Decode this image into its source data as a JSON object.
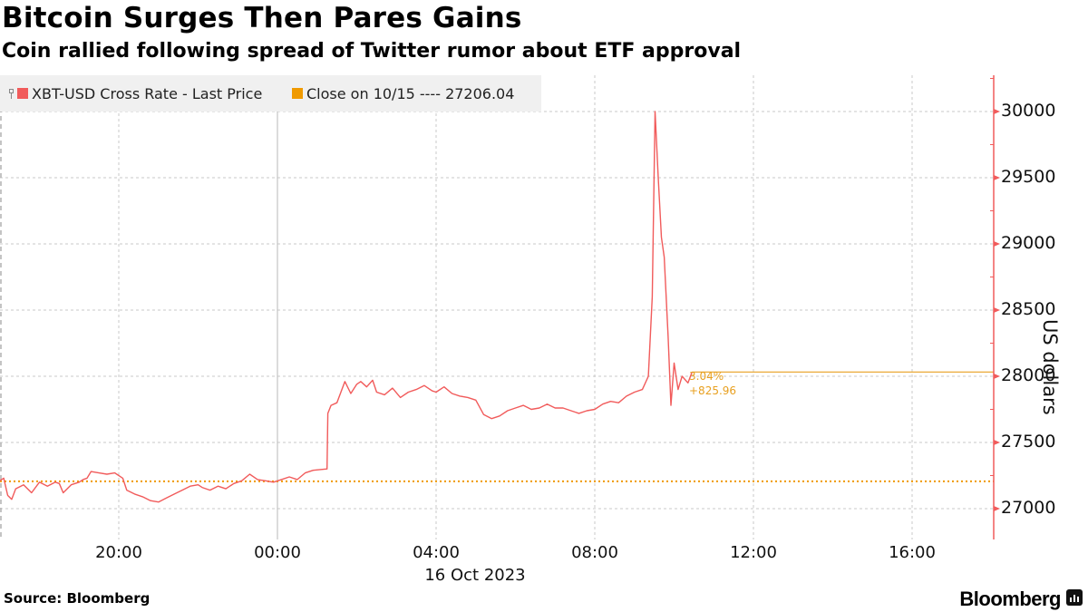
{
  "header": {
    "title": "Bitcoin Surges Then Pares Gains",
    "subtitle": "Coin rallied following spread of Twitter rumor about ETF approval"
  },
  "legend": {
    "series_label": "XBT-USD Cross Rate - Last Price",
    "series_color": "#f15b5b",
    "close_label": "Close on 10/15 ---- 27206.04",
    "close_color": "#f09a00"
  },
  "annotation": {
    "pct_change": "3.04%",
    "abs_change": "+825.96"
  },
  "footer": {
    "source": "Source: Bloomberg",
    "brand": "Bloomberg"
  },
  "chart_data": {
    "type": "line",
    "title": "Bitcoin Surges Then Pares Gains",
    "subtitle": "Coin rallied following spread of Twitter rumor about ETF approval",
    "xlabel": "16 Oct 2023",
    "ylabel": "US dollars",
    "x_tick_labels": [
      "20:00",
      "00:00",
      "04:00",
      "08:00",
      "12:00",
      "16:00"
    ],
    "x_tick_hours": [
      -4,
      0,
      4,
      8,
      12,
      16
    ],
    "x_range_hours": [
      -7,
      18
    ],
    "y_tick_labels": [
      "27000",
      "27500",
      "28000",
      "28500",
      "29000",
      "29500",
      "30000"
    ],
    "y_ticks": [
      27000,
      27500,
      28000,
      28500,
      29000,
      29500,
      30000
    ],
    "ylim": [
      26800,
      30350
    ],
    "grid": true,
    "legend_position": "top-left",
    "y_axis_position": "right",
    "reference_line": {
      "label": "Close on 10/15",
      "value": 27206.04,
      "style": "dotted",
      "color": "#f09a00"
    },
    "last_value_line": {
      "value": 28032,
      "color": "#e8a020",
      "annotation": [
        "3.04%",
        "+825.96"
      ]
    },
    "series": [
      {
        "name": "XBT-USD Cross Rate - Last Price",
        "color": "#f15b5b",
        "x_unit": "hours relative to 00:00 16 Oct 2023",
        "points": [
          [
            -7.0,
            27210
          ],
          [
            -6.9,
            27230
          ],
          [
            -6.8,
            27100
          ],
          [
            -6.7,
            27070
          ],
          [
            -6.6,
            27150
          ],
          [
            -6.4,
            27180
          ],
          [
            -6.2,
            27120
          ],
          [
            -6.0,
            27200
          ],
          [
            -5.8,
            27170
          ],
          [
            -5.6,
            27200
          ],
          [
            -5.5,
            27190
          ],
          [
            -5.4,
            27120
          ],
          [
            -5.2,
            27180
          ],
          [
            -5.0,
            27200
          ],
          [
            -4.9,
            27220
          ],
          [
            -4.8,
            27230
          ],
          [
            -4.7,
            27280
          ],
          [
            -4.5,
            27270
          ],
          [
            -4.3,
            27260
          ],
          [
            -4.1,
            27270
          ],
          [
            -3.9,
            27230
          ],
          [
            -3.8,
            27140
          ],
          [
            -3.6,
            27110
          ],
          [
            -3.4,
            27090
          ],
          [
            -3.2,
            27060
          ],
          [
            -3.0,
            27050
          ],
          [
            -2.8,
            27080
          ],
          [
            -2.6,
            27110
          ],
          [
            -2.4,
            27140
          ],
          [
            -2.2,
            27170
          ],
          [
            -2.0,
            27180
          ],
          [
            -1.9,
            27160
          ],
          [
            -1.7,
            27140
          ],
          [
            -1.5,
            27170
          ],
          [
            -1.3,
            27150
          ],
          [
            -1.1,
            27190
          ],
          [
            -0.9,
            27210
          ],
          [
            -0.7,
            27260
          ],
          [
            -0.5,
            27220
          ],
          [
            -0.3,
            27210
          ],
          [
            -0.1,
            27200
          ],
          [
            0.1,
            27220
          ],
          [
            0.3,
            27240
          ],
          [
            0.5,
            27220
          ],
          [
            0.7,
            27270
          ],
          [
            0.9,
            27290
          ],
          [
            1.25,
            27300
          ],
          [
            1.27,
            27720
          ],
          [
            1.35,
            27780
          ],
          [
            1.5,
            27800
          ],
          [
            1.6,
            27880
          ],
          [
            1.7,
            27960
          ],
          [
            1.85,
            27870
          ],
          [
            2.0,
            27940
          ],
          [
            2.1,
            27960
          ],
          [
            2.25,
            27920
          ],
          [
            2.4,
            27970
          ],
          [
            2.5,
            27880
          ],
          [
            2.7,
            27860
          ],
          [
            2.9,
            27910
          ],
          [
            3.1,
            27840
          ],
          [
            3.3,
            27880
          ],
          [
            3.5,
            27900
          ],
          [
            3.7,
            27930
          ],
          [
            3.9,
            27890
          ],
          [
            4.0,
            27880
          ],
          [
            4.2,
            27920
          ],
          [
            4.4,
            27870
          ],
          [
            4.6,
            27850
          ],
          [
            4.8,
            27840
          ],
          [
            5.0,
            27820
          ],
          [
            5.2,
            27710
          ],
          [
            5.4,
            27680
          ],
          [
            5.6,
            27700
          ],
          [
            5.8,
            27740
          ],
          [
            6.0,
            27760
          ],
          [
            6.2,
            27780
          ],
          [
            6.4,
            27750
          ],
          [
            6.6,
            27760
          ],
          [
            6.8,
            27790
          ],
          [
            7.0,
            27760
          ],
          [
            7.2,
            27760
          ],
          [
            7.4,
            27740
          ],
          [
            7.6,
            27720
          ],
          [
            7.8,
            27740
          ],
          [
            8.0,
            27750
          ],
          [
            8.2,
            27790
          ],
          [
            8.4,
            27810
          ],
          [
            8.6,
            27800
          ],
          [
            8.8,
            27850
          ],
          [
            9.0,
            27880
          ],
          [
            9.2,
            27900
          ],
          [
            9.35,
            28000
          ],
          [
            9.45,
            28600
          ],
          [
            9.52,
            30000
          ],
          [
            9.6,
            29500
          ],
          [
            9.68,
            29050
          ],
          [
            9.75,
            28900
          ],
          [
            9.85,
            28300
          ],
          [
            9.92,
            27780
          ],
          [
            10.0,
            28100
          ],
          [
            10.1,
            27900
          ],
          [
            10.2,
            28000
          ],
          [
            10.35,
            27950
          ],
          [
            10.45,
            28030
          ]
        ]
      }
    ]
  }
}
